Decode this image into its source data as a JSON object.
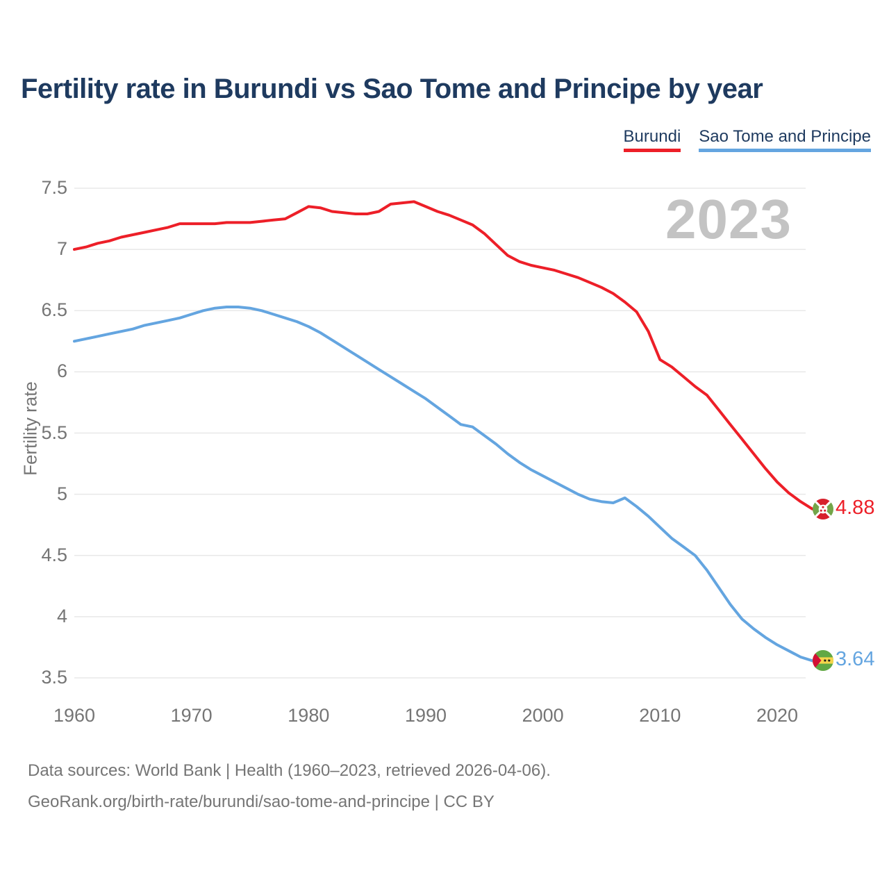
{
  "title": "Fertility rate in Burundi vs Sao Tome and Principe by year",
  "watermark": "2023",
  "ylabel": "Fertility rate",
  "legend": [
    {
      "label": "Burundi",
      "color": "#ed1f28"
    },
    {
      "label": "Sao Tome and Principe",
      "color": "#64a5e0"
    }
  ],
  "chart_data": {
    "type": "line",
    "title": "Fertility rate in Burundi vs Sao Tome and Principe by year",
    "xlabel": "",
    "ylabel": "Fertility rate",
    "xlim": [
      1960,
      2023
    ],
    "ylim": [
      3.5,
      7.5
    ],
    "grid": "horizontal",
    "legend_position": "top-right",
    "x_ticks": [
      1960,
      1970,
      1980,
      1990,
      2000,
      2010,
      2020
    ],
    "y_ticks": [
      3.5,
      4,
      4.5,
      5,
      5.5,
      6,
      6.5,
      7,
      7.5
    ],
    "y_tick_labels": [
      "3.5",
      "4",
      "4.5",
      "5",
      "5.5",
      "6",
      "6.5",
      "7",
      "7.5"
    ],
    "years": [
      1960,
      1961,
      1962,
      1963,
      1964,
      1965,
      1966,
      1967,
      1968,
      1969,
      1970,
      1971,
      1972,
      1973,
      1974,
      1975,
      1976,
      1977,
      1978,
      1979,
      1980,
      1981,
      1982,
      1983,
      1984,
      1985,
      1986,
      1987,
      1988,
      1989,
      1990,
      1991,
      1992,
      1993,
      1994,
      1995,
      1996,
      1997,
      1998,
      1999,
      2000,
      2001,
      2002,
      2003,
      2004,
      2005,
      2006,
      2007,
      2008,
      2009,
      2010,
      2011,
      2012,
      2013,
      2014,
      2015,
      2016,
      2017,
      2018,
      2019,
      2020,
      2021,
      2022,
      2023
    ],
    "series": [
      {
        "name": "Burundi",
        "color": "#ed1f28",
        "end_label": "4.88",
        "values": [
          7.0,
          7.02,
          7.05,
          7.07,
          7.1,
          7.12,
          7.14,
          7.16,
          7.18,
          7.21,
          7.21,
          7.21,
          7.21,
          7.22,
          7.22,
          7.22,
          7.23,
          7.24,
          7.25,
          7.3,
          7.35,
          7.34,
          7.31,
          7.3,
          7.29,
          7.29,
          7.31,
          7.37,
          7.38,
          7.39,
          7.35,
          7.31,
          7.28,
          7.24,
          7.2,
          7.13,
          7.04,
          6.95,
          6.9,
          6.87,
          6.85,
          6.83,
          6.8,
          6.77,
          6.73,
          6.69,
          6.64,
          6.57,
          6.49,
          6.33,
          6.1,
          6.04,
          5.96,
          5.88,
          5.81,
          5.69,
          5.57,
          5.45,
          5.33,
          5.21,
          5.1,
          5.01,
          4.94,
          4.88
        ]
      },
      {
        "name": "Sao Tome and Principe",
        "color": "#64a5e0",
        "end_label": "3.64",
        "values": [
          6.25,
          6.27,
          6.29,
          6.31,
          6.33,
          6.35,
          6.38,
          6.4,
          6.42,
          6.44,
          6.47,
          6.5,
          6.52,
          6.53,
          6.53,
          6.52,
          6.5,
          6.47,
          6.44,
          6.41,
          6.37,
          6.32,
          6.26,
          6.2,
          6.14,
          6.08,
          6.02,
          5.96,
          5.9,
          5.84,
          5.78,
          5.71,
          5.64,
          5.57,
          5.55,
          5.48,
          5.41,
          5.33,
          5.26,
          5.2,
          5.15,
          5.1,
          5.05,
          5.0,
          4.96,
          4.94,
          4.93,
          4.97,
          4.9,
          4.82,
          4.73,
          4.64,
          4.57,
          4.5,
          4.38,
          4.24,
          4.1,
          3.98,
          3.9,
          3.83,
          3.77,
          3.72,
          3.67,
          3.64
        ]
      }
    ]
  },
  "footer": {
    "line1": "Data sources: World Bank | Health (1960–2023, retrieved 2026-04-06).",
    "line2": "GeoRank.org/birth-rate/burundi/sao-tome-and-principe | CC BY"
  }
}
